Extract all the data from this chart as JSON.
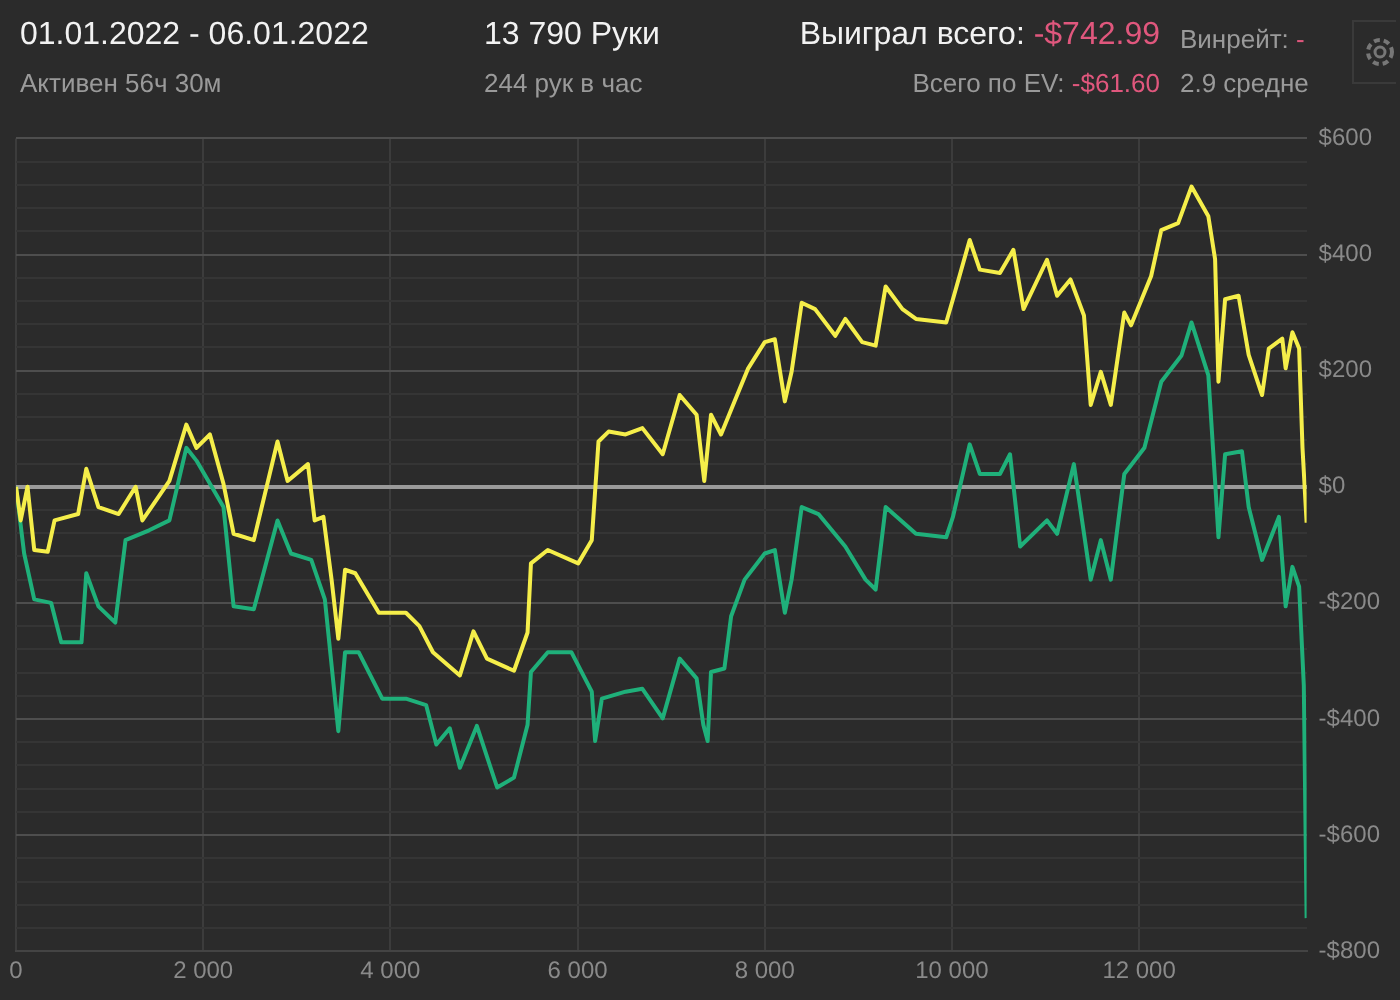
{
  "chart_data": {
    "type": "line",
    "title": "01.01.2022 - 06.01.2022",
    "subtitle": "Активен 56ч 30м",
    "annotations": [
      "13 790 Руки",
      "244 рук в час",
      "Выиграл всего: -$742.99",
      "Всего по EV: -$61.60",
      "Винрейт: -",
      "2.9 средне"
    ],
    "xlim": [
      0,
      13790
    ],
    "xticks": [
      0,
      {
        "value": 2000,
        "label": "2 000"
      },
      {
        "value": 4000,
        "label": "4 000"
      },
      {
        "value": 6000,
        "label": "6 000"
      },
      {
        "value": 8000,
        "label": "8 000"
      },
      {
        "value": 10000,
        "label": "10 000"
      },
      {
        "value": 12000,
        "label": "12 000"
      }
    ],
    "ylim": [
      -800,
      600
    ],
    "yticks": [
      {
        "value": -800,
        "label": "-$800"
      },
      {
        "value": -760,
        "label": null
      },
      {
        "value": -720,
        "label": null
      },
      {
        "value": -680,
        "label": null
      },
      {
        "value": -640,
        "label": null
      },
      {
        "value": -600,
        "label": "-$600"
      },
      {
        "value": -560,
        "label": null
      },
      {
        "value": -520,
        "label": null
      },
      {
        "value": -480,
        "label": null
      },
      {
        "value": -440,
        "label": null
      },
      {
        "value": -400,
        "label": "-$400"
      },
      {
        "value": -360,
        "label": null
      },
      {
        "value": -320,
        "label": null
      },
      {
        "value": -280,
        "label": null
      },
      {
        "value": -240,
        "label": null
      },
      {
        "value": -200,
        "label": "-$200"
      },
      {
        "value": -160,
        "label": null
      },
      {
        "value": -120,
        "label": null
      },
      {
        "value": -80,
        "label": null
      },
      {
        "value": -40,
        "label": null
      },
      {
        "value": 0,
        "label": "$0"
      },
      {
        "value": 40,
        "label": null
      },
      {
        "value": 80,
        "label": null
      },
      {
        "value": 120,
        "label": null
      },
      {
        "value": 160,
        "label": null
      },
      {
        "value": 200,
        "label": "$200"
      },
      {
        "value": 240,
        "label": null
      },
      {
        "value": 280,
        "label": null
      },
      {
        "value": 320,
        "label": null
      },
      {
        "value": 360,
        "label": null
      },
      {
        "value": 400,
        "label": "$400"
      },
      {
        "value": 440,
        "label": null
      },
      {
        "value": 480,
        "label": null
      },
      {
        "value": 520,
        "label": null
      },
      {
        "value": 560,
        "label": null
      },
      {
        "value": 600,
        "label": "$600"
      }
    ],
    "grid": true,
    "legend": false,
    "marker": "none",
    "line_style": "solid",
    "series": [
      {
        "color": "#f5ee4a",
        "x": [
          0,
          50,
          123,
          195,
          339,
          412,
          664,
          751,
          881,
          1097,
          1278,
          1350,
          1639,
          1820,
          1928,
          2072,
          2217,
          2325,
          2541,
          2794,
          2902,
          3119,
          3191,
          3285,
          3372,
          3444,
          3516,
          3625,
          3877,
          4166,
          4310,
          4455,
          4743,
          4888,
          5032,
          5321,
          5466,
          5502,
          5682,
          6007,
          6152,
          6224,
          6332,
          6513,
          6693,
          6910,
          7091,
          7272,
          7354,
          7426,
          7533,
          7677,
          7820,
          8000,
          8108,
          8215,
          8287,
          8395,
          8538,
          8754,
          8861,
          9041,
          9185,
          9292,
          9472,
          9616,
          9939,
          10011,
          10190,
          10298,
          10513,
          10657,
          10765,
          11016,
          11124,
          11267,
          11411,
          11483,
          11591,
          11698,
          11842,
          11914,
          12129,
          12237,
          12417,
          12560,
          12740,
          12812,
          12848,
          12919,
          13063,
          13171,
          13314,
          13386,
          13530,
          13566,
          13638,
          13710,
          13746,
          13790
        ],
        "values": [
          0,
          -58,
          0,
          -109,
          -112,
          -58,
          -47,
          31,
          -35,
          -47,
          0,
          -58,
          10,
          107,
          67,
          90,
          5,
          -81,
          -92,
          78,
          10,
          39,
          -58,
          -52,
          -160,
          -262,
          -143,
          -149,
          -217,
          -217,
          -240,
          -285,
          -325,
          -249,
          -296,
          -317,
          -251,
          -132,
          -109,
          -132,
          -92,
          78,
          95,
          90,
          101,
          56,
          158,
          124,
          10,
          124,
          90,
          147,
          203,
          249,
          254,
          147,
          198,
          317,
          306,
          260,
          289,
          249,
          243,
          345,
          306,
          289,
          283,
          323,
          425,
          374,
          368,
          408,
          306,
          391,
          329,
          357,
          295,
          141,
          198,
          141,
          300,
          278,
          363,
          442,
          454,
          517,
          466,
          392,
          181,
          323,
          329,
          227,
          158,
          238,
          255,
          204,
          266,
          238,
          67,
          -62
        ]
      },
      {
        "color": "#1fb07a",
        "x": [
          0,
          87,
          195,
          375,
          483,
          700,
          751,
          881,
          1061,
          1170,
          1422,
          1639,
          1820,
          1928,
          2217,
          2325,
          2541,
          2794,
          2938,
          3155,
          3300,
          3444,
          3516,
          3661,
          3913,
          4166,
          4382,
          4491,
          4635,
          4743,
          4924,
          5141,
          5321,
          5466,
          5502,
          5682,
          5934,
          6152,
          6188,
          6260,
          6513,
          6693,
          6910,
          7091,
          7272,
          7344,
          7390,
          7426,
          7569,
          7641,
          7785,
          8000,
          8108,
          8215,
          8287,
          8395,
          8574,
          8861,
          9077,
          9185,
          9292,
          9616,
          9939,
          10011,
          10190,
          10298,
          10513,
          10621,
          10729,
          11016,
          11124,
          11303,
          11483,
          11591,
          11698,
          11842,
          12057,
          12237,
          12453,
          12560,
          12740,
          12812,
          12848,
          12919,
          13099,
          13171,
          13314,
          13494,
          13566,
          13638,
          13710,
          13760,
          13790
        ],
        "values": [
          0,
          -115,
          -194,
          -200,
          -268,
          -268,
          -149,
          -206,
          -234,
          -92,
          -75,
          -58,
          67,
          45,
          -35,
          -206,
          -211,
          -58,
          -115,
          -126,
          -194,
          -421,
          -285,
          -285,
          -365,
          -365,
          -376,
          -444,
          -416,
          -484,
          -412,
          -518,
          -501,
          -410,
          -319,
          -285,
          -285,
          -353,
          -438,
          -365,
          -353,
          -348,
          -399,
          -296,
          -330,
          -410,
          -438,
          -319,
          -313,
          -223,
          -160,
          -115,
          -109,
          -217,
          -160,
          -35,
          -47,
          -103,
          -160,
          -177,
          -35,
          -81,
          -87,
          -52,
          73,
          22,
          22,
          56,
          -103,
          -58,
          -81,
          39,
          -160,
          -92,
          -160,
          22,
          67,
          181,
          226,
          283,
          192,
          10,
          -87,
          56,
          61,
          -35,
          -126,
          -52,
          -206,
          -138,
          -172,
          -342,
          -743
        ]
      }
    ]
  }
}
